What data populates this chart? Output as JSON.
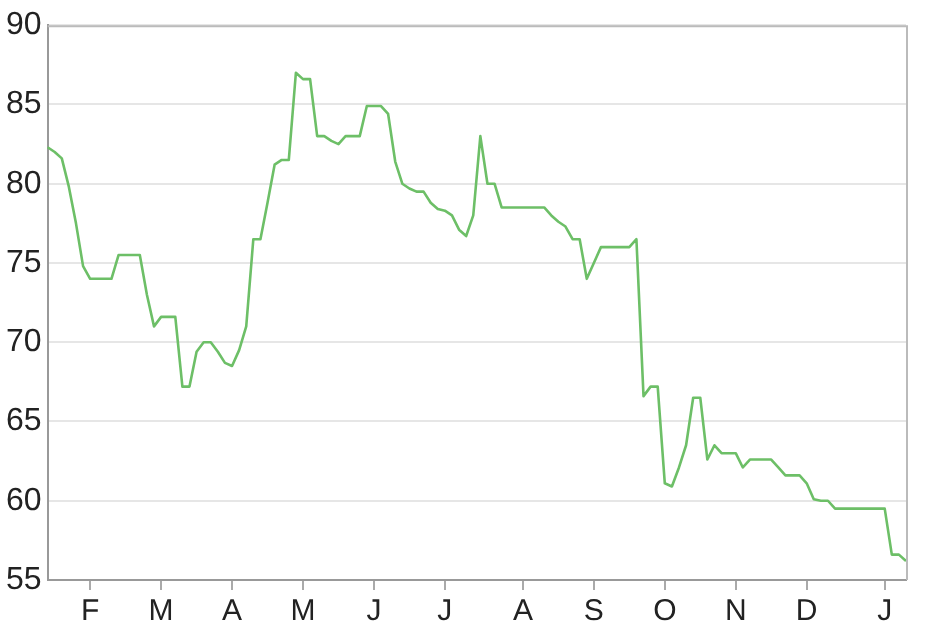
{
  "chart_data": {
    "type": "line",
    "categories": [
      null,
      null,
      null,
      null,
      null,
      null,
      "F",
      null,
      null,
      null,
      null,
      null,
      null,
      null,
      null,
      null,
      "M",
      null,
      null,
      null,
      null,
      null,
      null,
      null,
      null,
      null,
      "A",
      null,
      null,
      null,
      null,
      null,
      null,
      null,
      null,
      null,
      "M",
      null,
      null,
      null,
      null,
      null,
      null,
      null,
      null,
      null,
      "J",
      null,
      null,
      null,
      null,
      null,
      null,
      null,
      null,
      null,
      "J",
      null,
      null,
      null,
      null,
      null,
      null,
      null,
      null,
      null,
      null,
      "A",
      null,
      null,
      null,
      null,
      null,
      null,
      null,
      null,
      null,
      "S",
      null,
      null,
      null,
      null,
      null,
      null,
      null,
      null,
      null,
      "O",
      null,
      null,
      null,
      null,
      null,
      null,
      null,
      null,
      null,
      "N",
      null,
      null,
      null,
      null,
      null,
      null,
      null,
      null,
      null,
      "D",
      null,
      null,
      null,
      null,
      null,
      null,
      null,
      null,
      null,
      null,
      "J",
      null,
      null,
      null
    ],
    "series": [
      {
        "color": "#6dbf67",
        "values": [
          82.3,
          82,
          81.6,
          79.8,
          77.5,
          74.8,
          74,
          74,
          74,
          74,
          75.5,
          75.5,
          75.5,
          75.5,
          73,
          71,
          71.6,
          71.6,
          71.6,
          67.2,
          67.2,
          69.4,
          70,
          70,
          69.4,
          68.7,
          68.5,
          69.5,
          71,
          76.5,
          76.5,
          78.8,
          81.2,
          81.5,
          81.5,
          87,
          86.6,
          86.6,
          83,
          83,
          82.7,
          82.5,
          83,
          83,
          83,
          84.9,
          84.9,
          84.9,
          84.4,
          81.4,
          80,
          79.7,
          79.5,
          79.5,
          78.8,
          78.4,
          78.3,
          78,
          77.1,
          76.7,
          78,
          83,
          80,
          80,
          78.5,
          78.5,
          78.5,
          78.5,
          78.5,
          78.5,
          78.5,
          78,
          77.6,
          77.3,
          76.5,
          76.5,
          74,
          75,
          76,
          76,
          76,
          76,
          76,
          76.5,
          66.6,
          67.2,
          67.2,
          61.1,
          60.9,
          62.1,
          63.5,
          66.5,
          66.5,
          62.6,
          63.5,
          63,
          63,
          63,
          62.1,
          62.6,
          62.6,
          62.6,
          62.6,
          62.1,
          61.6,
          61.6,
          61.6,
          61.1,
          60.1,
          60,
          60,
          59.5,
          59.5,
          59.5,
          59.5,
          59.5,
          59.5,
          59.5,
          59.5,
          56.6,
          56.6,
          56.2
        ]
      }
    ],
    "ylim": [
      55,
      90
    ],
    "yticks": [
      55,
      60,
      65,
      70,
      75,
      80,
      85,
      90
    ],
    "grid": "y"
  }
}
